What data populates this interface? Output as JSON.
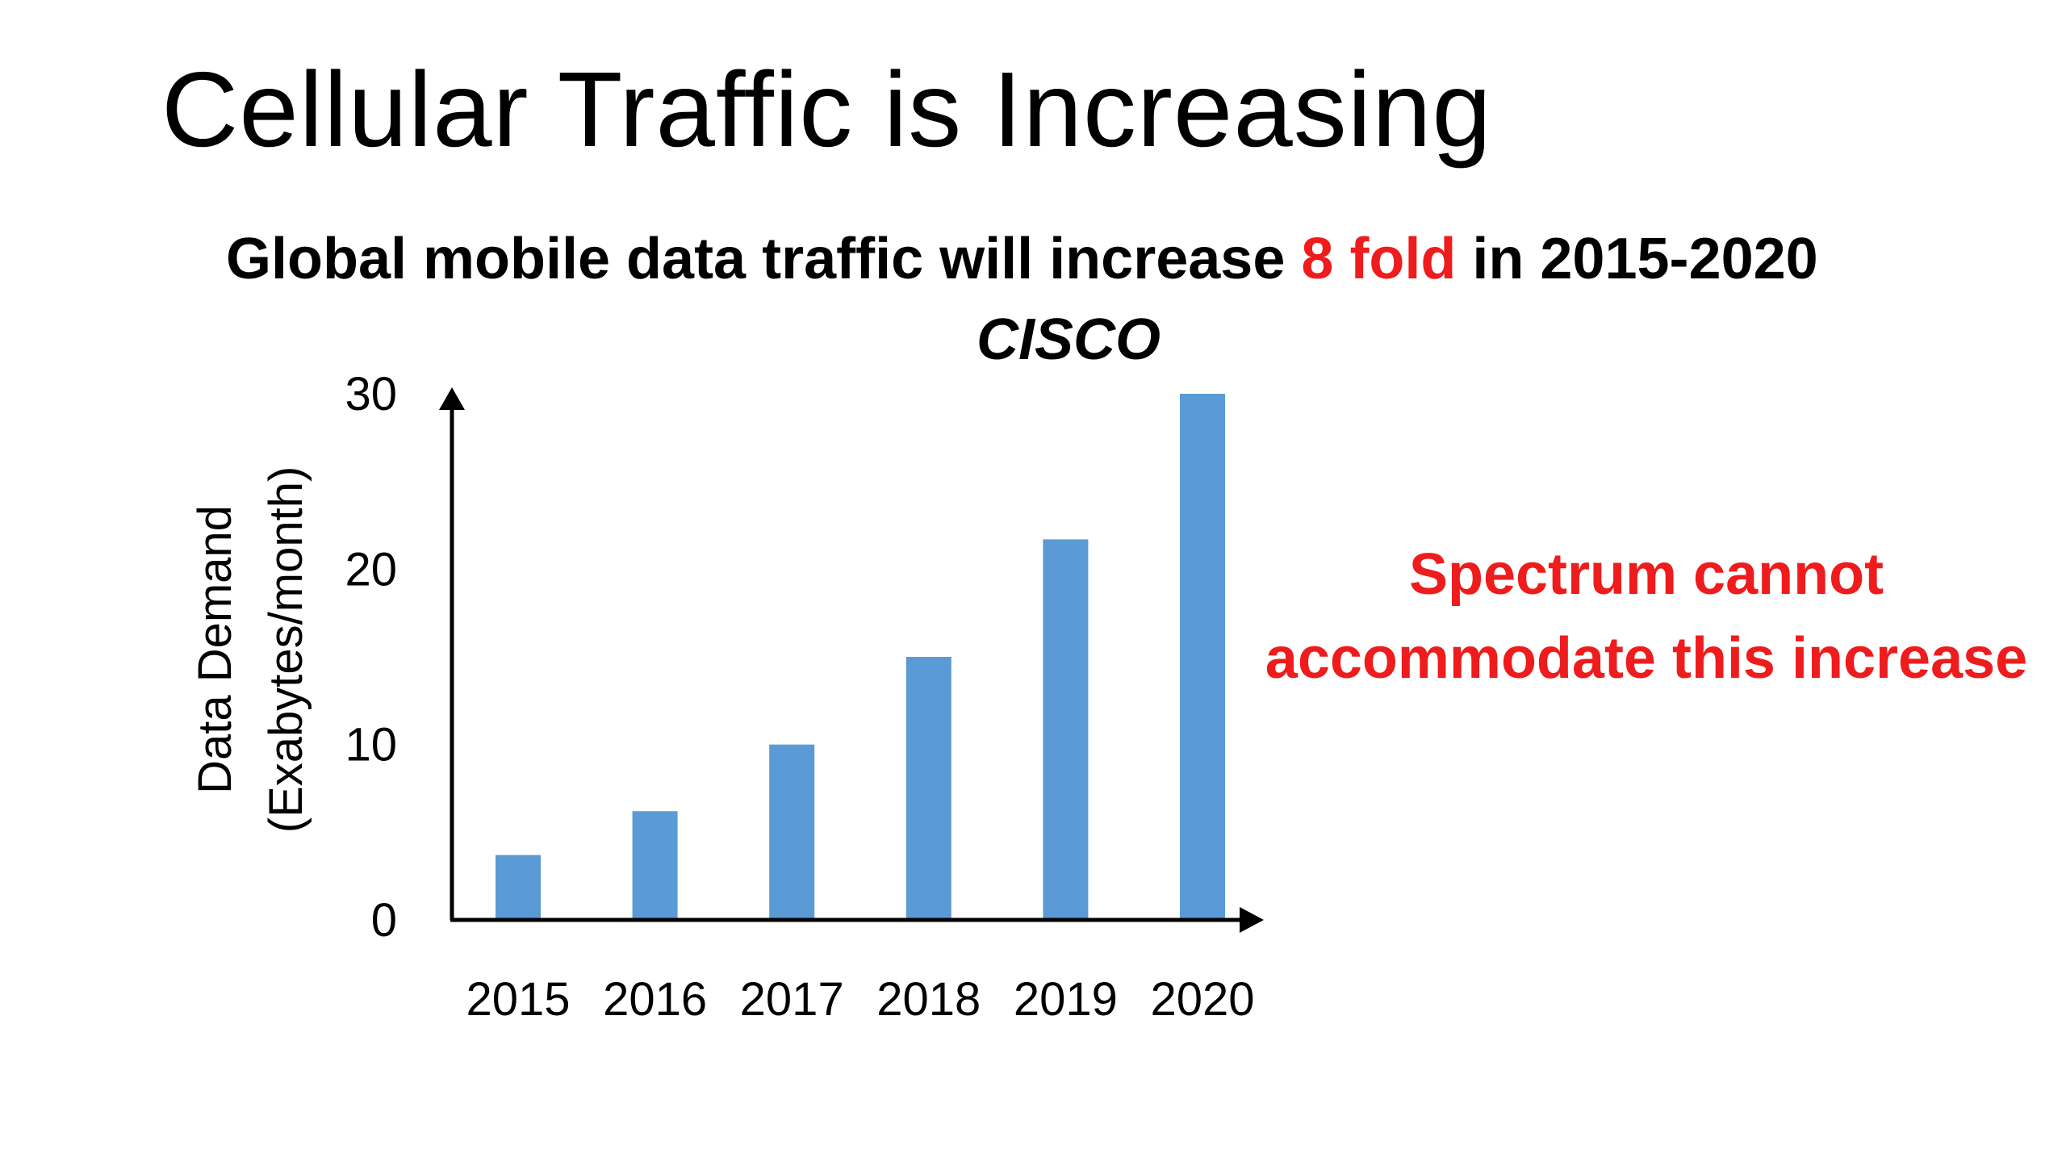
{
  "slide": {
    "title": "Cellular Traffic is Increasing",
    "headline_prefix": "Global mobile data traffic will increase ",
    "headline_accent": "8 fold",
    "headline_suffix": " in 2015-2020",
    "source": "CISCO",
    "callout_line1": "Spectrum cannot",
    "callout_line2": "accommodate this increase",
    "accent_color": "#ee1c1c"
  },
  "chart_data": {
    "type": "bar",
    "categories": [
      "2015",
      "2016",
      "2017",
      "2018",
      "2019",
      "2020"
    ],
    "values": [
      3.7,
      6.2,
      10,
      15,
      21.7,
      30
    ],
    "ylabel_line1": "Data Demand",
    "ylabel_line2": "(Exabytes/month)",
    "xlabel": "",
    "ylim": [
      0,
      30
    ],
    "yticks": [
      0,
      10,
      20,
      30
    ],
    "bar_color": "#5b9bd5",
    "grid": false,
    "legend": "none"
  }
}
